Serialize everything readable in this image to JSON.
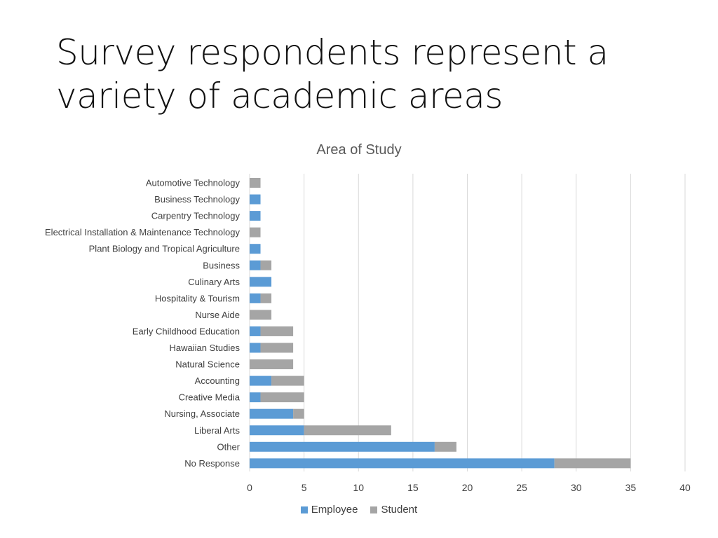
{
  "slide": {
    "title": "Survey respondents represent a variety of academic areas"
  },
  "colors": {
    "employee": "#5B9BD5",
    "student": "#A5A5A5",
    "grid": "#D9D9D9"
  },
  "chart_data": {
    "type": "bar",
    "orientation": "horizontal",
    "stacked": true,
    "title": "Area of Study",
    "categories": [
      "Automotive Technology",
      "Business Technology",
      "Carpentry Technology",
      "Electrical Installation & Maintenance Technology",
      "Plant Biology and Tropical Agriculture",
      "Business",
      "Culinary Arts",
      "Hospitality & Tourism",
      "Nurse Aide",
      "Early Childhood Education",
      "Hawaiian Studies",
      "Natural Science",
      "Accounting",
      "Creative Media",
      "Nursing, Associate",
      "Liberal Arts",
      "Other",
      "No Response"
    ],
    "series": [
      {
        "name": "Employee",
        "values": [
          0,
          1,
          1,
          0,
          1,
          1,
          2,
          1,
          0,
          1,
          1,
          0,
          2,
          1,
          4,
          5,
          17,
          28
        ]
      },
      {
        "name": "Student",
        "values": [
          1,
          0,
          0,
          1,
          0,
          1,
          0,
          1,
          2,
          3,
          3,
          4,
          3,
          4,
          1,
          8,
          2,
          7
        ]
      }
    ],
    "xlim": [
      0,
      40
    ],
    "xticks": [
      "0",
      "5",
      "10",
      "15",
      "20",
      "25",
      "30",
      "35",
      "40"
    ],
    "grid": true,
    "legend_position": "bottom"
  }
}
